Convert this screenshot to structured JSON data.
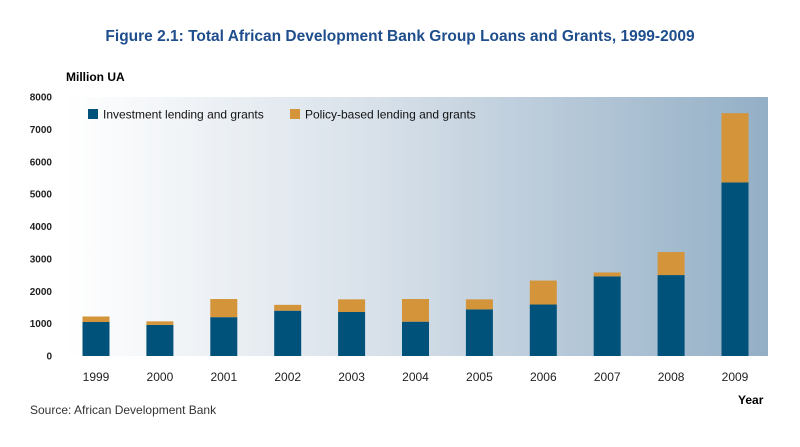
{
  "chart_data": {
    "type": "bar",
    "stacked": true,
    "title": "Figure 2.1: Total African Development Bank Group Loans and Grants, 1999-2009",
    "ylabel": "Million UA",
    "xlabel": "Year",
    "ylim": [
      0,
      8000
    ],
    "yticks": [
      "0",
      "1000",
      "2000",
      "3000",
      "4000",
      "5000",
      "6000",
      "7000",
      "8000"
    ],
    "grid": false,
    "legend_position": "top-left",
    "categories": [
      "1999",
      "2000",
      "2001",
      "2002",
      "2003",
      "2004",
      "2005",
      "2006",
      "2007",
      "2008",
      "2009"
    ],
    "series": [
      {
        "name": "Investment lending and grants",
        "color": "#00527a",
        "values": [
          1050,
          960,
          1200,
          1400,
          1360,
          1060,
          1440,
          1590,
          2460,
          2500,
          5360
        ]
      },
      {
        "name": "Policy-based lending and grants",
        "color": "#d4953a",
        "values": [
          170,
          110,
          560,
          180,
          390,
          700,
          310,
          740,
          120,
          710,
          2140
        ]
      }
    ],
    "source": "Source: African Development Bank"
  }
}
